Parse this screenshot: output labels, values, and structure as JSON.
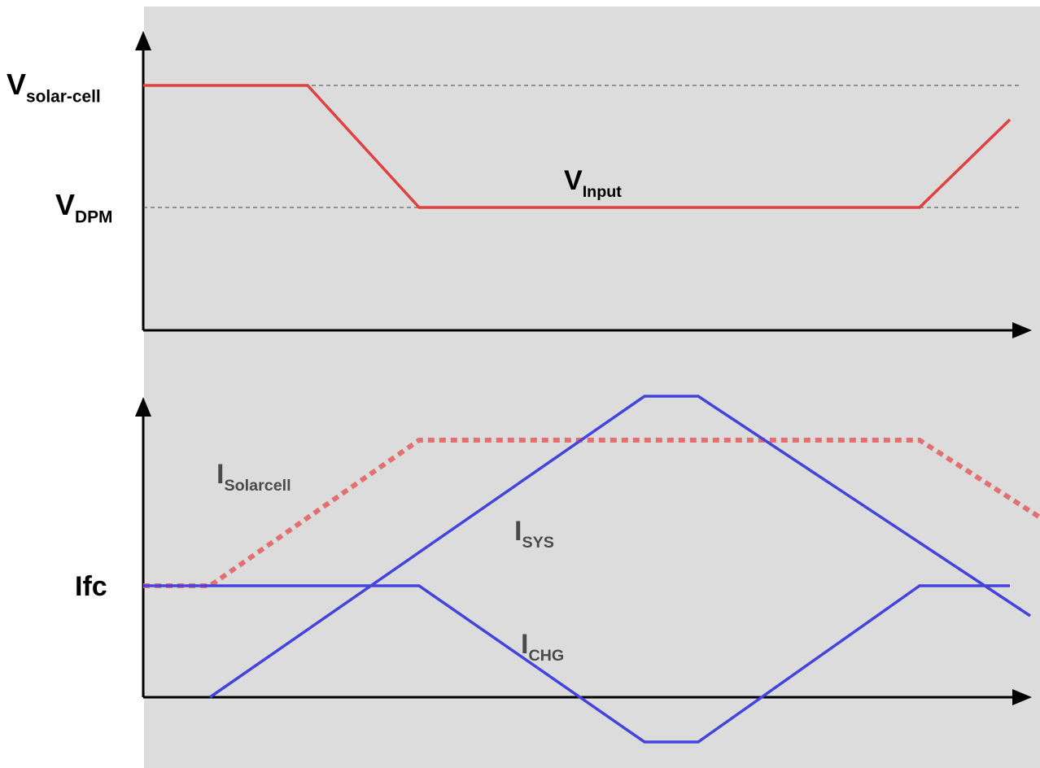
{
  "colors": {
    "background": "#dcdcdc",
    "axis": "#000000",
    "voltage_line": "#e04040",
    "solar_current": "#e27070",
    "current_lines": "#4444dd",
    "reference": "#444444"
  },
  "labels": {
    "v_solar": {
      "main": "V",
      "sub": "solar-cell"
    },
    "v_dpm": {
      "main": "V",
      "sub": "DPM"
    },
    "v_input": {
      "main": "V",
      "sub": "Input"
    },
    "ifc": {
      "main": "Ifc"
    },
    "i_solarcell": {
      "main": "I",
      "sub": "Solarcell"
    },
    "i_sys": {
      "main": "I",
      "sub": "SYS"
    },
    "i_chg": {
      "main": "I",
      "sub": "CHG"
    }
  },
  "icons": [
    "arrow-up-icon",
    "arrow-right-icon"
  ]
}
